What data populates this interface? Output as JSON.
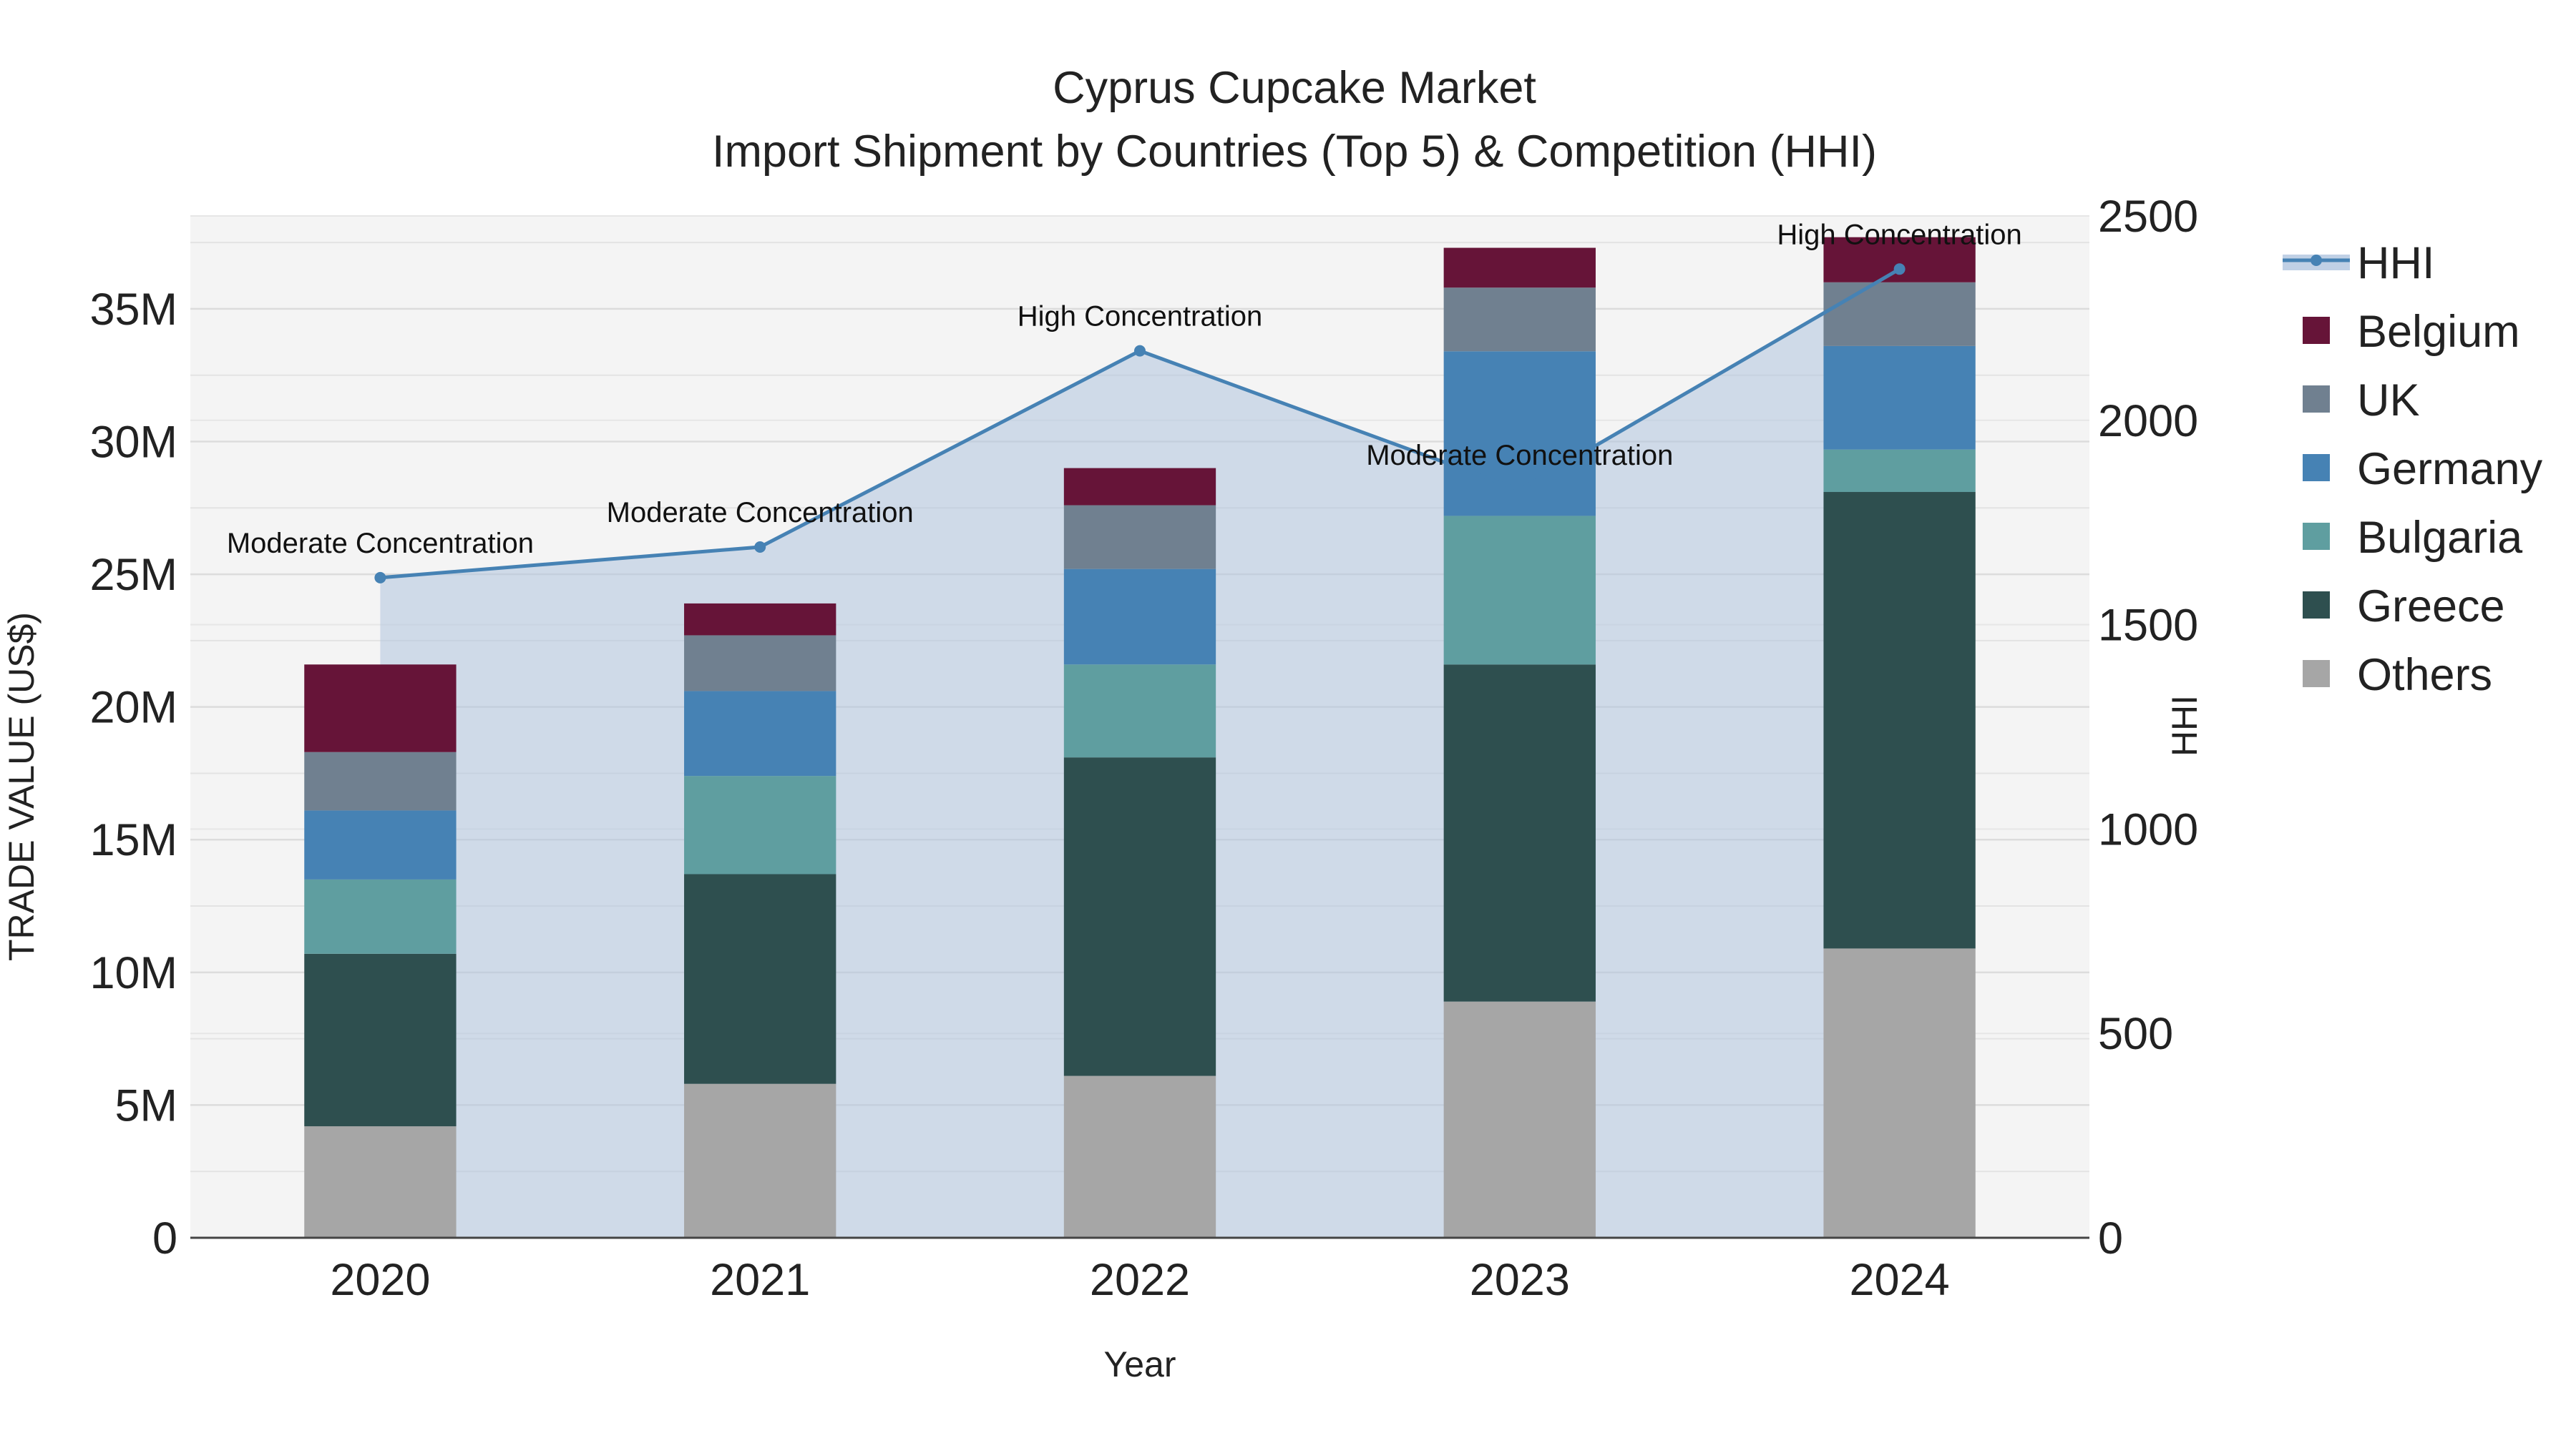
{
  "chart_data": {
    "type": "bar",
    "stacked": true,
    "title": "Cyprus Cupcake Market",
    "subtitle": "Import Shipment by Countries (Top 5) & Competition (HHI)",
    "xlabel": "Year",
    "ylabel": "TRADE VALUE (US$)",
    "y2label": "HHI",
    "categories": [
      "2020",
      "2021",
      "2022",
      "2023",
      "2024"
    ],
    "ylim": [
      0,
      38500000
    ],
    "y_ticks": [
      0,
      5000000,
      10000000,
      15000000,
      20000000,
      25000000,
      30000000,
      35000000
    ],
    "y_tick_labels": [
      "0",
      "5M",
      "10M",
      "15M",
      "20M",
      "25M",
      "30M",
      "35M"
    ],
    "y2lim": [
      0,
      2500
    ],
    "y2_ticks": [
      0,
      500,
      1000,
      1500,
      2000,
      2500
    ],
    "y2_tick_labels": [
      "0",
      "500",
      "1000",
      "1500",
      "2000",
      "2500"
    ],
    "series": [
      {
        "name": "Others",
        "color": "#a6a6a6",
        "values": [
          4200000,
          5800000,
          6100000,
          8900000,
          10900000
        ]
      },
      {
        "name": "Greece",
        "color": "#2e4f4f",
        "values": [
          6500000,
          7900000,
          12000000,
          12700000,
          17200000
        ]
      },
      {
        "name": "Bulgaria",
        "color": "#5f9ea0",
        "values": [
          2800000,
          3700000,
          3500000,
          5600000,
          1600000
        ]
      },
      {
        "name": "Germany",
        "color": "#4682b4",
        "values": [
          2600000,
          3200000,
          3600000,
          6200000,
          3900000
        ]
      },
      {
        "name": "UK",
        "color": "#708090",
        "values": [
          2200000,
          2100000,
          2400000,
          2400000,
          2400000
        ]
      },
      {
        "name": "Belgium",
        "color": "#661438",
        "values": [
          3300000,
          1200000,
          1400000,
          1500000,
          1700000
        ]
      }
    ],
    "hhi": {
      "name": "HHI",
      "color": "#4682b4",
      "fill_color": "#b0c4de",
      "values": [
        1615,
        1690,
        2170,
        1830,
        2370
      ],
      "annotations": [
        "Moderate Concentration",
        "Moderate Concentration",
        "High Concentration",
        "Moderate Concentration",
        "High Concentration"
      ]
    },
    "legend_order": [
      "HHI",
      "Belgium",
      "UK",
      "Germany",
      "Bulgaria",
      "Greece",
      "Others"
    ],
    "legend_position": "right"
  }
}
